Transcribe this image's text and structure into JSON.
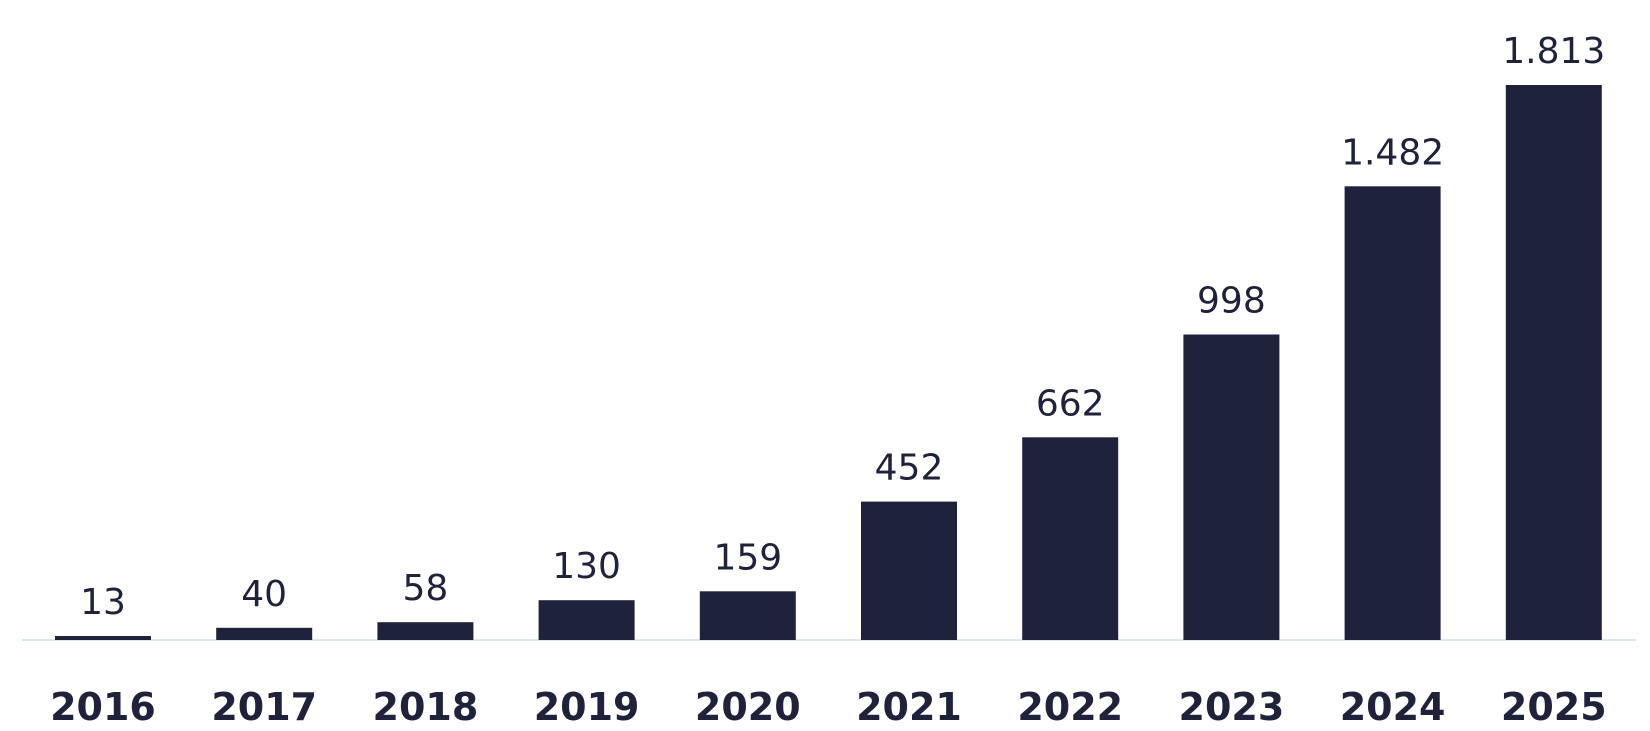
{
  "chart_data": {
    "type": "bar",
    "categories": [
      "2016",
      "2017",
      "2018",
      "2019",
      "2020",
      "2021",
      "2022",
      "2023",
      "2024",
      "2025"
    ],
    "values": [
      13,
      40,
      58,
      130,
      159,
      452,
      662,
      998,
      1482,
      1813
    ],
    "value_labels": [
      "13",
      "40",
      "58",
      "130",
      "159",
      "452",
      "662",
      "998",
      "1.482",
      "1.813"
    ],
    "title": "",
    "xlabel": "",
    "ylabel": "",
    "ylim": [
      0,
      1813
    ],
    "grid": false,
    "legend": "none",
    "colors": {
      "bar": "#1e223b",
      "value_text": "#1e223b",
      "category_text": "#1e223b",
      "baseline": "#cfe1f2",
      "background": "#ffffff"
    }
  }
}
